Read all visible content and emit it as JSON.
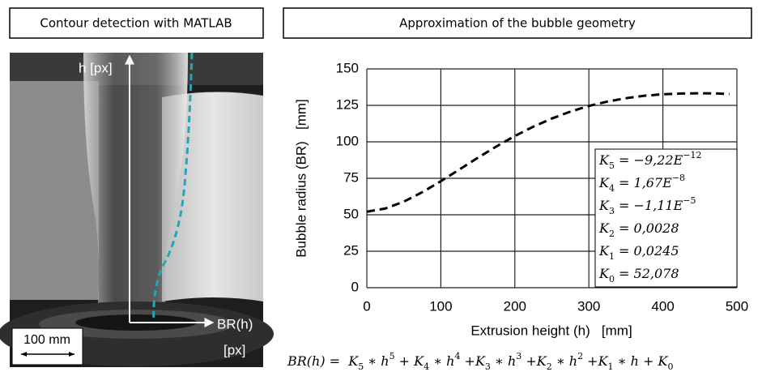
{
  "left_panel": {
    "title": "Contour detection with MATLAB",
    "y_axis_label": "h [px]",
    "x_axis_label": "BR(h)",
    "x_axis_unit": "[px]",
    "scale_bar": "100 mm"
  },
  "chart_data": {
    "type": "line",
    "title": "Approximation of the bubble geometry",
    "x_label": "Extrusion height (h)   [mm]",
    "y_label": "Bubble radius (BR)   [mm]",
    "x": [
      0,
      25,
      50,
      75,
      100,
      125,
      150,
      175,
      200,
      225,
      250,
      275,
      300,
      325,
      350,
      375,
      400,
      425,
      450,
      475,
      490
    ],
    "values": [
      52.1,
      54.3,
      59.0,
      65.5,
      73.0,
      81.0,
      89.1,
      96.8,
      104.0,
      110.4,
      116.0,
      120.7,
      124.6,
      127.6,
      129.9,
      131.6,
      132.6,
      133.1,
      133.3,
      133.1,
      132.7
    ],
    "color": "#000000",
    "line_style": "dashed",
    "xlim": [
      0,
      500
    ],
    "xticks": [
      0,
      100,
      200,
      300,
      400,
      500
    ],
    "ylim": [
      0,
      150
    ],
    "yticks": [
      0,
      25,
      50,
      75,
      100,
      125,
      150
    ],
    "grid": true
  },
  "coefficients": [
    {
      "symbol": "K",
      "sub": "5",
      "value": " = −9,22E",
      "sup": "−12"
    },
    {
      "symbol": "K",
      "sub": "4",
      "value": " = 1,67E",
      "sup": "−8"
    },
    {
      "symbol": "K",
      "sub": "3",
      "value": " = −1,11E",
      "sup": "−5"
    },
    {
      "symbol": "K",
      "sub": "2",
      "value": " = 0,0028"
    },
    {
      "symbol": "K",
      "sub": "1",
      "value": " = 0,0245"
    },
    {
      "symbol": "K",
      "sub": "0",
      "value": " = 52,078"
    }
  ],
  "formula": [
    {
      "text": "BR(h) =  K",
      "sub": "5"
    },
    {
      "text": " ∗ h",
      "sup": "5"
    },
    {
      "text": " + K",
      "sub": "4"
    },
    {
      "text": " ∗ h",
      "sup": "4"
    },
    {
      "text": " +K",
      "sub": "3"
    },
    {
      "text": " ∗ h",
      "sup": "3"
    },
    {
      "text": " +K",
      "sub": "2"
    },
    {
      "text": " ∗ h",
      "sup": "2"
    },
    {
      "text": " +K",
      "sub": "1"
    },
    {
      "text": " ∗ h + K",
      "sub": "0"
    }
  ]
}
